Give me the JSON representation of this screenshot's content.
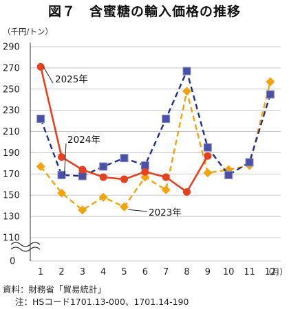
{
  "chart_data": {
    "type": "line",
    "title": "図７　含蜜糖の輸入価格の推移",
    "ylabel": "（千円/トン）",
    "xlabel_unit": "（月）",
    "x": [
      1,
      2,
      3,
      4,
      5,
      6,
      7,
      8,
      9,
      10,
      11,
      12
    ],
    "x_tick_labels": [
      "1",
      "2",
      "3",
      "4",
      "5",
      "6",
      "7",
      "8",
      "9",
      "10",
      "11",
      "12"
    ],
    "y_ticks": [
      110,
      130,
      150,
      170,
      190,
      210,
      230,
      250,
      270,
      290
    ],
    "y_zero_label": "0",
    "ylim": [
      110,
      290
    ],
    "axis_break": true,
    "grid": "horizontal",
    "series": [
      {
        "name": "2023年",
        "color": "#f5a30a",
        "marker": "diamond",
        "dash": "dashed",
        "values": [
          177,
          152,
          136,
          148,
          139,
          167,
          155,
          248,
          171,
          174,
          178,
          257
        ]
      },
      {
        "name": "2024年",
        "color": "#1f2f8c",
        "marker": "square",
        "dash": "dashed",
        "values": [
          222,
          169,
          168,
          177,
          185,
          178,
          222,
          267,
          195,
          169,
          181,
          245
        ]
      },
      {
        "name": "2025年",
        "color": "#e8401c",
        "marker": "circle",
        "dash": "solid",
        "values": [
          271,
          186,
          174,
          167,
          165,
          172,
          167,
          153,
          187,
          null,
          null,
          null
        ]
      }
    ]
  },
  "footer": {
    "source": "資料：財務省「貿易統計」",
    "note": "注：HSコード1701.13-000、1701.14-190"
  }
}
